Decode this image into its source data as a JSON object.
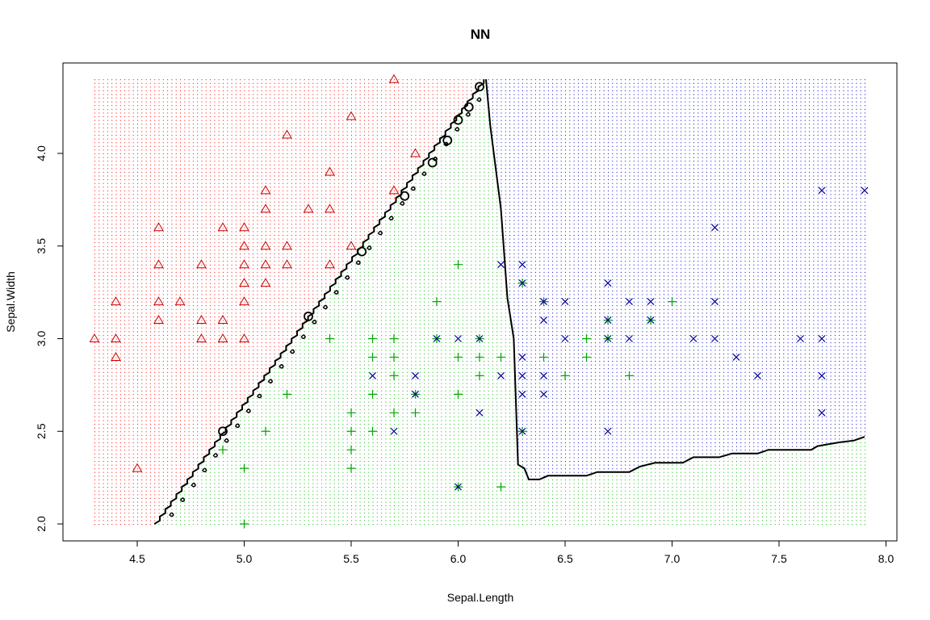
{
  "chart_data": {
    "type": "scatter",
    "title": "NN",
    "xlabel": "Sepal.Length",
    "ylabel": "Sepal.Width",
    "xlim": [
      4.3,
      7.9
    ],
    "ylim": [
      2.0,
      4.4
    ],
    "x_ticks": [
      "4.5",
      "5.0",
      "5.5",
      "6.0",
      "6.5",
      "7.0",
      "7.5",
      "8.0"
    ],
    "y_ticks": [
      "2.0",
      "2.5",
      "3.0",
      "3.5",
      "4.0"
    ],
    "grid": false,
    "legend": "none",
    "region_colors": {
      "setosa": "#ff0000",
      "versicolor": "#00bb00",
      "virginica": "#0000cc"
    },
    "decision_boundary": {
      "diagonal": [
        [
          4.58,
          2.0
        ],
        [
          6.12,
          4.4
        ]
      ],
      "vertical": [
        [
          6.13,
          4.4
        ],
        [
          6.15,
          4.15
        ],
        [
          6.2,
          3.7
        ],
        [
          6.23,
          3.22
        ],
        [
          6.26,
          3.0
        ],
        [
          6.28,
          2.32
        ],
        [
          6.31,
          2.3
        ],
        [
          6.33,
          2.24
        ],
        [
          6.38,
          2.24
        ],
        [
          6.42,
          2.26
        ],
        [
          6.6,
          2.26
        ],
        [
          6.65,
          2.28
        ],
        [
          6.8,
          2.28
        ],
        [
          6.85,
          2.31
        ],
        [
          6.92,
          2.33
        ],
        [
          7.05,
          2.33
        ],
        [
          7.1,
          2.36
        ],
        [
          7.22,
          2.36
        ],
        [
          7.28,
          2.38
        ],
        [
          7.4,
          2.38
        ],
        [
          7.45,
          2.4
        ],
        [
          7.65,
          2.4
        ],
        [
          7.68,
          2.42
        ],
        [
          7.78,
          2.44
        ],
        [
          7.85,
          2.45
        ],
        [
          7.9,
          2.47
        ]
      ]
    },
    "series": [
      {
        "class": "setosa",
        "marker": "triangle",
        "color": "#cc0000",
        "points": [
          [
            4.3,
            3.0
          ],
          [
            4.4,
            3.2
          ],
          [
            4.4,
            3.0
          ],
          [
            4.4,
            2.9
          ],
          [
            4.5,
            2.3
          ],
          [
            4.6,
            3.6
          ],
          [
            4.6,
            3.4
          ],
          [
            4.6,
            3.2
          ],
          [
            4.6,
            3.1
          ],
          [
            4.7,
            3.2
          ],
          [
            4.8,
            3.4
          ],
          [
            4.8,
            3.1
          ],
          [
            4.8,
            3.0
          ],
          [
            4.9,
            3.6
          ],
          [
            4.9,
            3.1
          ],
          [
            4.9,
            3.0
          ],
          [
            5.0,
            3.6
          ],
          [
            5.0,
            3.5
          ],
          [
            5.0,
            3.4
          ],
          [
            5.0,
            3.3
          ],
          [
            5.0,
            3.2
          ],
          [
            5.0,
            3.0
          ],
          [
            5.1,
            3.8
          ],
          [
            5.1,
            3.7
          ],
          [
            5.1,
            3.5
          ],
          [
            5.1,
            3.4
          ],
          [
            5.1,
            3.3
          ],
          [
            5.2,
            4.1
          ],
          [
            5.2,
            3.5
          ],
          [
            5.2,
            3.4
          ],
          [
            5.3,
            3.7
          ],
          [
            5.4,
            3.9
          ],
          [
            5.4,
            3.7
          ],
          [
            5.4,
            3.4
          ],
          [
            5.5,
            4.2
          ],
          [
            5.5,
            3.5
          ],
          [
            5.7,
            4.4
          ],
          [
            5.7,
            3.8
          ],
          [
            5.8,
            4.0
          ]
        ]
      },
      {
        "class": "versicolor",
        "marker": "plus",
        "color": "#00aa00",
        "points": [
          [
            4.9,
            2.4
          ],
          [
            5.0,
            2.3
          ],
          [
            5.0,
            2.0
          ],
          [
            5.1,
            2.5
          ],
          [
            5.2,
            2.7
          ],
          [
            5.4,
            3.0
          ],
          [
            5.5,
            2.6
          ],
          [
            5.5,
            2.5
          ],
          [
            5.5,
            2.4
          ],
          [
            5.5,
            2.3
          ],
          [
            5.6,
            3.0
          ],
          [
            5.6,
            2.9
          ],
          [
            5.6,
            2.7
          ],
          [
            5.6,
            2.5
          ],
          [
            5.7,
            3.0
          ],
          [
            5.7,
            2.9
          ],
          [
            5.7,
            2.8
          ],
          [
            5.7,
            2.6
          ],
          [
            5.8,
            2.7
          ],
          [
            5.8,
            2.6
          ],
          [
            5.9,
            3.2
          ],
          [
            5.9,
            3.0
          ],
          [
            6.0,
            3.4
          ],
          [
            6.0,
            2.9
          ],
          [
            6.0,
            2.7
          ],
          [
            6.0,
            2.2
          ],
          [
            6.1,
            3.0
          ],
          [
            6.1,
            2.9
          ],
          [
            6.1,
            2.8
          ],
          [
            6.2,
            2.9
          ],
          [
            6.2,
            2.2
          ],
          [
            6.3,
            3.3
          ],
          [
            6.3,
            2.5
          ],
          [
            6.4,
            3.2
          ],
          [
            6.4,
            2.9
          ],
          [
            6.5,
            2.8
          ],
          [
            6.6,
            3.0
          ],
          [
            6.6,
            2.9
          ],
          [
            6.7,
            3.1
          ],
          [
            6.7,
            3.0
          ],
          [
            6.8,
            2.8
          ],
          [
            6.9,
            3.1
          ],
          [
            7.0,
            3.2
          ]
        ]
      },
      {
        "class": "virginica",
        "marker": "x",
        "color": "#000099",
        "points": [
          [
            5.6,
            2.8
          ],
          [
            5.7,
            2.5
          ],
          [
            5.8,
            2.8
          ],
          [
            5.8,
            2.7
          ],
          [
            5.9,
            3.0
          ],
          [
            6.0,
            3.0
          ],
          [
            6.0,
            2.2
          ],
          [
            6.1,
            3.0
          ],
          [
            6.1,
            2.6
          ],
          [
            6.2,
            3.4
          ],
          [
            6.2,
            2.8
          ],
          [
            6.3,
            3.4
          ],
          [
            6.3,
            3.3
          ],
          [
            6.3,
            2.9
          ],
          [
            6.3,
            2.8
          ],
          [
            6.3,
            2.7
          ],
          [
            6.3,
            2.5
          ],
          [
            6.4,
            3.2
          ],
          [
            6.4,
            3.1
          ],
          [
            6.4,
            2.8
          ],
          [
            6.4,
            2.7
          ],
          [
            6.5,
            3.2
          ],
          [
            6.5,
            3.0
          ],
          [
            6.7,
            3.3
          ],
          [
            6.7,
            3.1
          ],
          [
            6.7,
            3.0
          ],
          [
            6.7,
            2.5
          ],
          [
            6.8,
            3.2
          ],
          [
            6.8,
            3.0
          ],
          [
            6.9,
            3.2
          ],
          [
            6.9,
            3.1
          ],
          [
            7.1,
            3.0
          ],
          [
            7.2,
            3.6
          ],
          [
            7.2,
            3.2
          ],
          [
            7.2,
            3.0
          ],
          [
            7.3,
            2.9
          ],
          [
            7.4,
            2.8
          ],
          [
            7.6,
            3.0
          ],
          [
            7.7,
            3.8
          ],
          [
            7.7,
            3.0
          ],
          [
            7.7,
            2.8
          ],
          [
            7.7,
            2.6
          ],
          [
            7.9,
            3.8
          ]
        ]
      },
      {
        "class": "support",
        "marker": "circle",
        "color": "#000000",
        "points": [
          [
            6.1,
            4.36
          ],
          [
            6.05,
            4.25
          ],
          [
            6.0,
            4.18
          ],
          [
            5.95,
            4.07
          ],
          [
            5.88,
            3.95
          ],
          [
            5.75,
            3.77
          ],
          [
            5.55,
            3.47
          ],
          [
            5.3,
            3.12
          ],
          [
            4.9,
            2.5
          ]
        ]
      }
    ]
  }
}
